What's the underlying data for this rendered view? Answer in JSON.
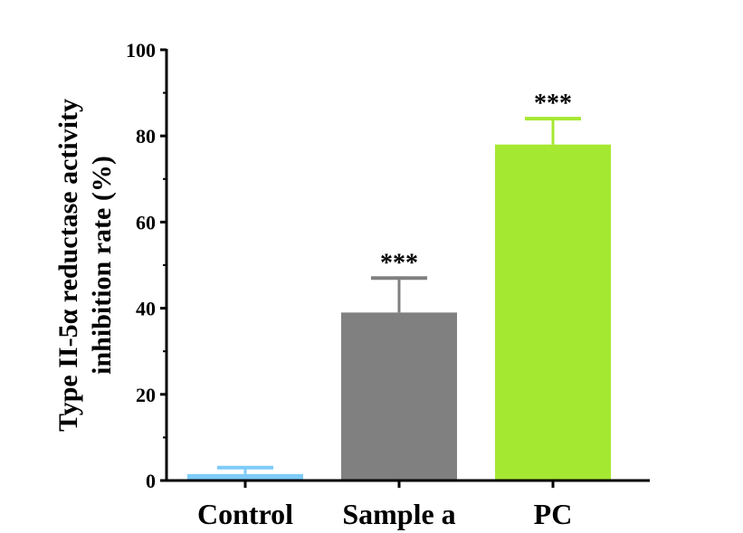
{
  "chart_data": {
    "type": "bar",
    "title": "",
    "xlabel": "",
    "ylabel": [
      "Type II-5α reductase activity",
      "inhibition rate (%)"
    ],
    "categories": [
      "Control",
      "Sample a",
      "PC"
    ],
    "values": [
      1.5,
      39,
      78
    ],
    "errors": [
      1.5,
      8,
      6
    ],
    "annotations": [
      "",
      "***",
      "***"
    ],
    "colors": [
      "#7ecbfa",
      "#808080",
      "#a5e832"
    ],
    "ylim": [
      0,
      100
    ],
    "yticks": [
      0,
      20,
      40,
      60,
      80,
      100
    ],
    "grid": false
  }
}
